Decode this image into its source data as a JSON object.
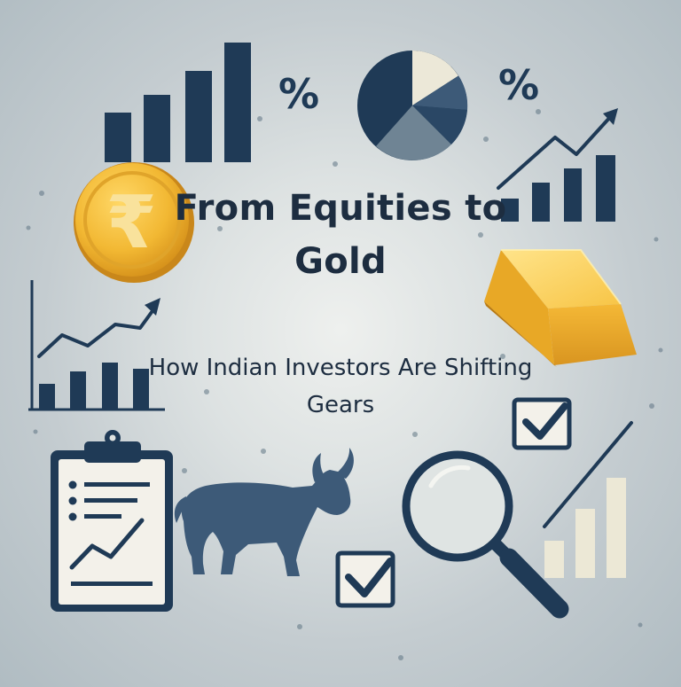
{
  "headline": {
    "title": "From Equities to Gold",
    "subtitle": "How Indian Investors Are Shifting Gears"
  },
  "symbols": {
    "percent": "%",
    "rupee": "₹"
  },
  "palette": {
    "navy": "#1f3a56",
    "slate": "#6f8494",
    "gold": "#f2b833",
    "cream": "#ece8d8"
  },
  "icons": [
    "bar-chart-icon",
    "percent-icon",
    "pie-chart-icon",
    "trend-up-icon",
    "rupee-coin-icon",
    "gold-bar-icon",
    "checkbox-checked-icon",
    "clipboard-report-icon",
    "bull-icon",
    "magnifying-glass-icon"
  ]
}
